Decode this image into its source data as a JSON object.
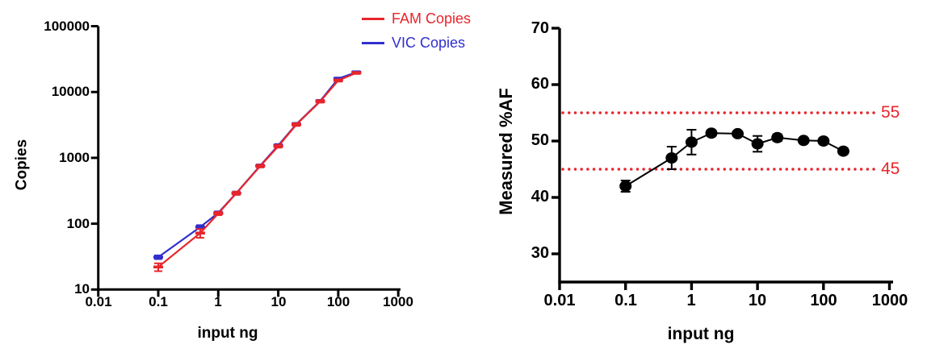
{
  "figure": {
    "background": "#ffffff",
    "accent_red": "#E8252B",
    "accent_blue": "#312FCE",
    "series_black": "#000000"
  },
  "chart_data": [
    {
      "type": "line",
      "title": "",
      "xlabel": "input ng",
      "ylabel": "Copies",
      "xscale": "log",
      "yscale": "log",
      "xlim": [
        0.01,
        1000
      ],
      "ylim": [
        10,
        100000
      ],
      "grid": false,
      "legend_position": "top-right",
      "x_ticks": [
        0.01,
        0.1,
        1,
        10,
        100,
        1000
      ],
      "x_tick_labels": [
        "0.01",
        "0.1",
        "1",
        "10",
        "100",
        "1000"
      ],
      "y_ticks": [
        10,
        100,
        1000,
        10000,
        100000
      ],
      "y_tick_labels": [
        "10",
        "100",
        "1000",
        "10000",
        "100000"
      ],
      "x": [
        0.1,
        0.5,
        1,
        2,
        5,
        10,
        20,
        50,
        100,
        200
      ],
      "series": [
        {
          "name": "FAM Copies",
          "color": "#E8252B",
          "values": [
            22,
            72,
            143,
            290,
            750,
            1500,
            3200,
            7200,
            15000,
            19500
          ],
          "errors": [
            3,
            11,
            8,
            16,
            35,
            70,
            150,
            300,
            600,
            700
          ]
        },
        {
          "name": "VIC Copies",
          "color": "#312FCE",
          "values": [
            31,
            89,
            146,
            292,
            760,
            1550,
            3250,
            7300,
            16000,
            20000
          ],
          "errors": [
            2,
            6,
            8,
            16,
            35,
            70,
            150,
            300,
            600,
            700
          ]
        }
      ]
    },
    {
      "type": "scatter",
      "title": "",
      "xlabel": "input ng",
      "ylabel": "Measured %AF",
      "xscale": "log",
      "yscale": "linear",
      "xlim": [
        0.01,
        1000
      ],
      "ylim": [
        25,
        70
      ],
      "grid": false,
      "marker": "filled-circle",
      "series_color": "#000000",
      "x_ticks": [
        0.01,
        0.1,
        1,
        10,
        100,
        1000
      ],
      "x_tick_labels": [
        "0.01",
        "0.1",
        "1",
        "10",
        "100",
        "1000"
      ],
      "y_ticks": [
        30,
        40,
        50,
        60,
        70
      ],
      "y_tick_labels": [
        "30",
        "40",
        "50",
        "60",
        "70"
      ],
      "x": [
        0.1,
        0.5,
        1,
        2,
        5,
        10,
        20,
        50,
        100,
        200
      ],
      "values": [
        42,
        47,
        49.8,
        51.4,
        51.3,
        49.5,
        50.6,
        50.1,
        50,
        48.2
      ],
      "errors": [
        1,
        2,
        2.2,
        0.5,
        0.4,
        1.4,
        0.6,
        0.4,
        0.4,
        0.5
      ],
      "reference_lines": [
        {
          "value": 55,
          "label": "55",
          "color": "#E8252B",
          "style": "dotted"
        },
        {
          "value": 45,
          "label": "45",
          "color": "#E8252B",
          "style": "dotted"
        }
      ]
    }
  ]
}
